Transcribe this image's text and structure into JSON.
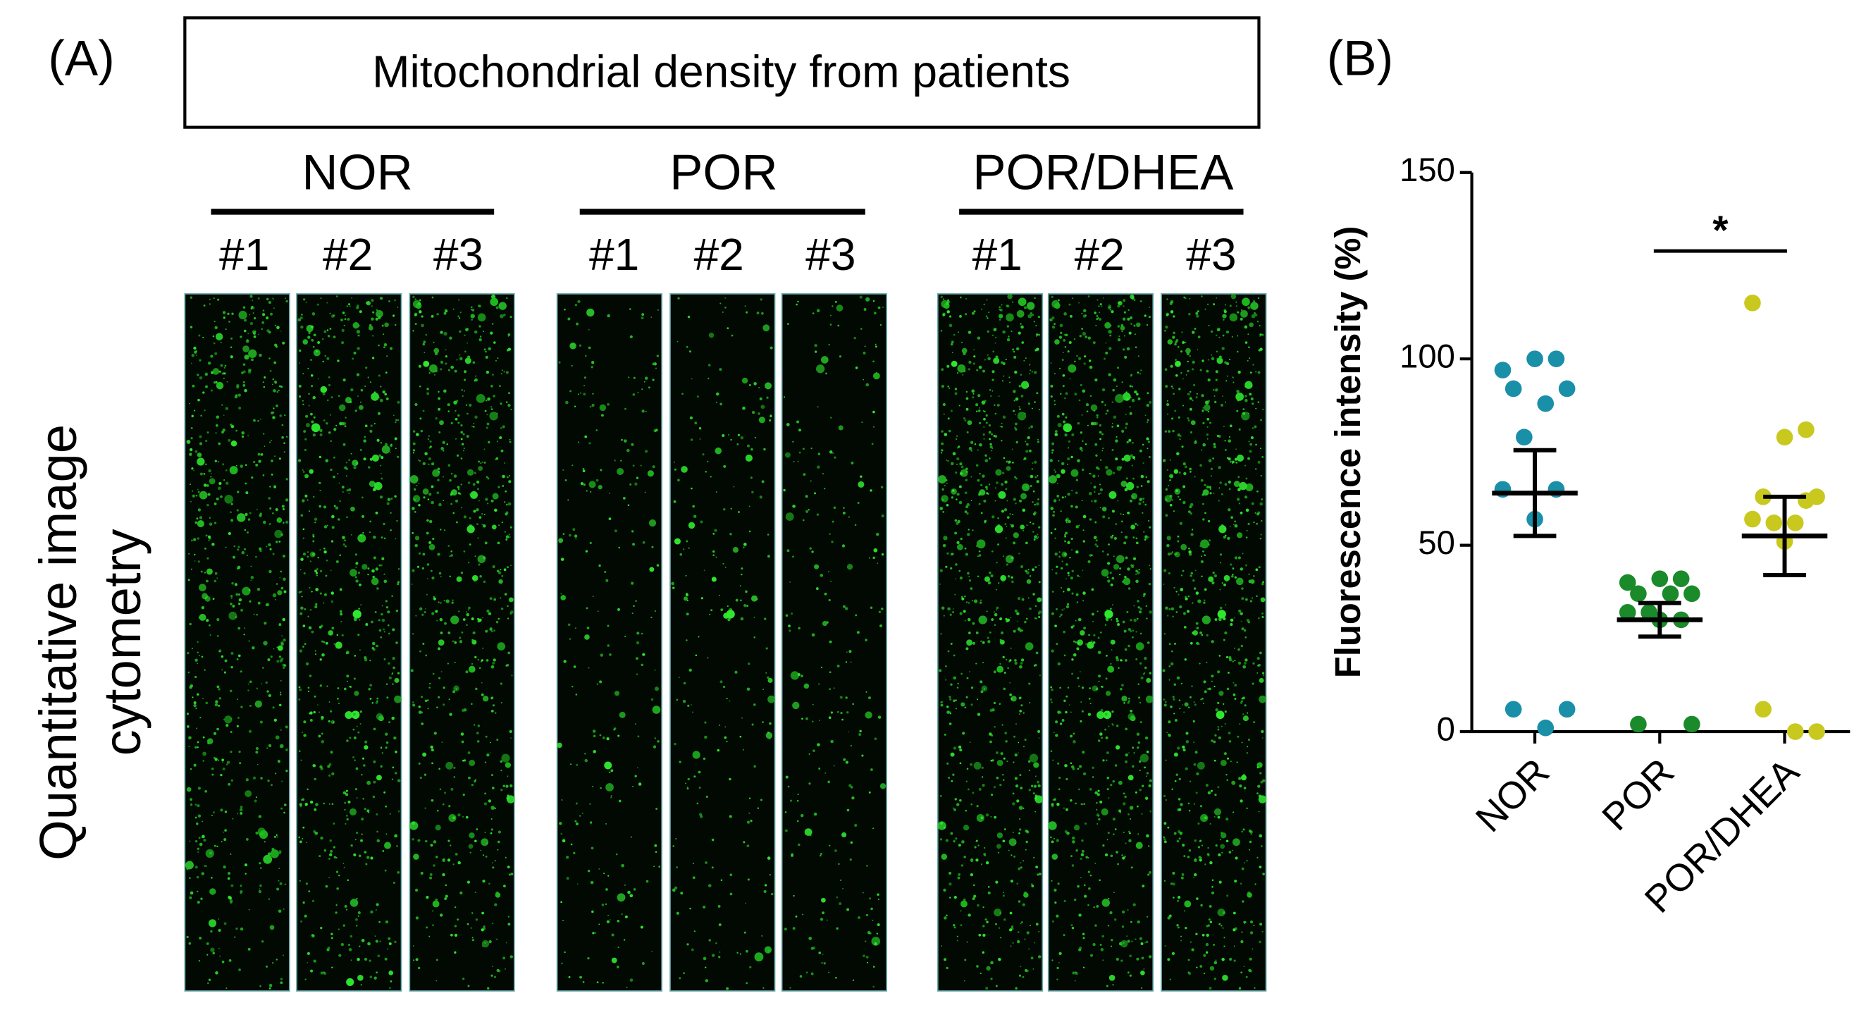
{
  "panel_a": {
    "label": "(A)",
    "title": "Mitochondrial density from patients",
    "y_label_lines": [
      "Quantitative image",
      "cytometry"
    ],
    "groups": [
      {
        "name": "NOR",
        "samples": [
          "#1",
          "#2",
          "#3"
        ]
      },
      {
        "name": "POR",
        "samples": [
          "#1",
          "#2",
          "#3"
        ]
      },
      {
        "name": "POR/DHEA",
        "samples": [
          "#1",
          "#2",
          "#3"
        ]
      }
    ]
  },
  "panel_b_label": "(B)",
  "chart_data": {
    "type": "scatter",
    "y_label": "Fluorescence intensity (%)",
    "categories": [
      "NOR",
      "POR",
      "POR/DHEA"
    ],
    "series": [
      {
        "color": "#1a8fa8",
        "values": [
          97,
          100,
          100,
          92,
          92,
          88,
          79,
          65,
          65,
          57,
          6,
          6,
          1
        ],
        "mean": 64,
        "sem": 11.5
      },
      {
        "color": "#1a8a2a",
        "values": [
          40,
          41,
          41,
          37,
          37,
          37,
          32,
          32,
          30,
          30,
          2,
          2
        ],
        "mean": 30,
        "sem": 4.5
      },
      {
        "color": "#c8c81e",
        "values": [
          115,
          81,
          79,
          63,
          63,
          56,
          56,
          57,
          62,
          51,
          6,
          0,
          0
        ],
        "mean": 52.5,
        "sem": 10.5
      }
    ],
    "ylim": [
      0,
      150
    ],
    "yticks": [
      0,
      50,
      100,
      150
    ],
    "annotation": "*"
  }
}
